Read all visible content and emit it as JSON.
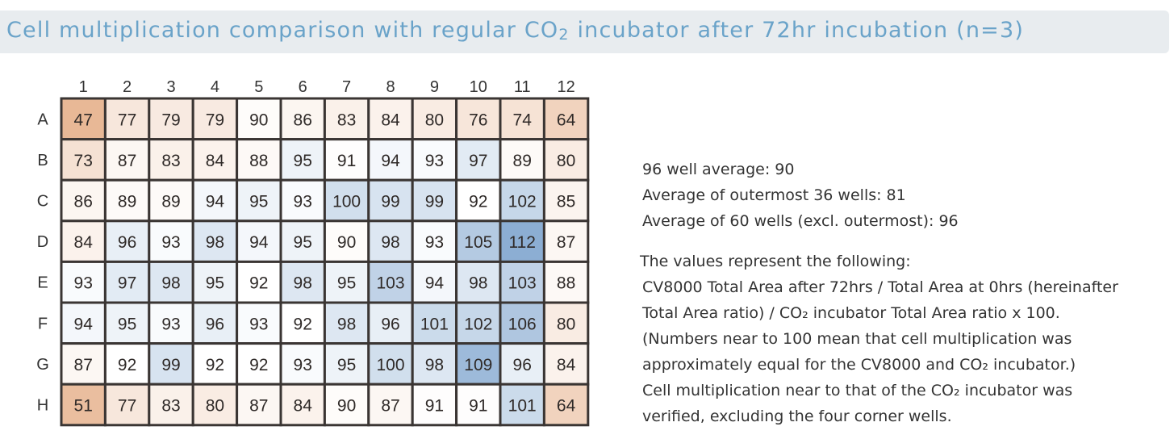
{
  "title": {
    "pre": "Cell multiplication comparison with regular CO",
    "sub": "2",
    "post": " incubator after 72hr incubation (n=3)"
  },
  "chart_data": {
    "type": "heatmap",
    "title": "Cell multiplication comparison with regular CO2 incubator after 72hr incubation (n=3)",
    "columns": [
      "1",
      "2",
      "3",
      "4",
      "5",
      "6",
      "7",
      "8",
      "9",
      "10",
      "11",
      "12"
    ],
    "rows": [
      "A",
      "B",
      "C",
      "D",
      "E",
      "F",
      "G",
      "H"
    ],
    "values": [
      [
        47,
        77,
        79,
        79,
        90,
        86,
        83,
        84,
        80,
        76,
        74,
        64
      ],
      [
        73,
        87,
        83,
        84,
        88,
        95,
        91,
        94,
        93,
        97,
        89,
        80
      ],
      [
        86,
        89,
        89,
        94,
        95,
        93,
        100,
        99,
        99,
        92,
        102,
        85
      ],
      [
        84,
        96,
        93,
        98,
        94,
        95,
        90,
        98,
        93,
        105,
        112,
        87
      ],
      [
        93,
        97,
        98,
        95,
        92,
        98,
        95,
        103,
        94,
        98,
        103,
        88
      ],
      [
        94,
        95,
        93,
        96,
        93,
        92,
        98,
        96,
        101,
        102,
        106,
        80
      ],
      [
        87,
        92,
        99,
        92,
        92,
        93,
        95,
        100,
        98,
        109,
        96,
        84
      ],
      [
        51,
        77,
        83,
        80,
        87,
        84,
        90,
        87,
        91,
        91,
        101,
        64
      ]
    ],
    "colors": {
      "low": "#e8b896",
      "mid": "#ffffff",
      "high": "#8caed3"
    }
  },
  "summary": [
    "96 well average: 90",
    "Average of outermost 36 wells: 81",
    "Average of 60 wells (excl. outermost): 96"
  ],
  "notes": [
    "The values represent the following:",
    "CV8000 Total Area after 72hrs / Total Area at 0hrs (hereinafter",
    "Total Area ratio) / CO₂ incubator Total Area ratio x 100.",
    "(Numbers near to 100 mean that cell multiplication was",
    "approximately equal for the CV8000 and CO₂  incubator.)",
    "Cell multiplication near to that of the CO₂  incubator was",
    "verified, excluding the four corner wells."
  ]
}
